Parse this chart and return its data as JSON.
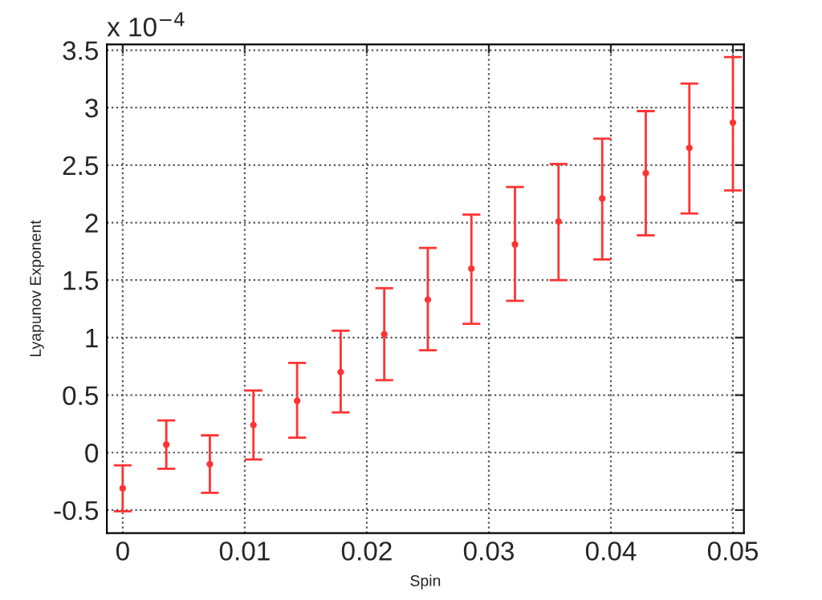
{
  "chart_data": {
    "type": "scatter",
    "xlabel": "Spin",
    "ylabel": "Lyapunov Exponent",
    "annotations": [
      "x 10$^{−4}$"
    ],
    "x": [
      0,
      0.00357,
      0.00714,
      0.01071,
      0.01429,
      0.01786,
      0.02143,
      0.025,
      0.02857,
      0.03214,
      0.03571,
      0.03929,
      0.04286,
      0.04643,
      0.05
    ],
    "series": [
      {
        "color": "#ff3333",
        "values": [
          -0.31,
          0.07,
          -0.1,
          0.24,
          0.45,
          0.7,
          1.03,
          1.33,
          1.6,
          1.81,
          2.01,
          2.21,
          2.43,
          2.65,
          2.87
        ],
        "errors": [
          [
            -0.51,
            -0.11
          ],
          [
            -0.14,
            0.28
          ],
          [
            -0.35,
            0.15
          ],
          [
            -0.06,
            0.54
          ],
          [
            0.13,
            0.78
          ],
          [
            0.35,
            1.06
          ],
          [
            0.63,
            1.43
          ],
          [
            0.89,
            1.78
          ],
          [
            1.12,
            2.07
          ],
          [
            1.32,
            2.31
          ],
          [
            1.5,
            2.51
          ],
          [
            1.68,
            2.73
          ],
          [
            1.89,
            2.97
          ],
          [
            2.08,
            3.21
          ],
          [
            2.28,
            3.44
          ]
        ]
      }
    ],
    "xlim": [
      -0.0013,
      0.0509
    ],
    "ylim": [
      -0.7,
      3.55
    ],
    "xticks": [
      {
        "value": 0,
        "label": "0"
      },
      0.01,
      0.02,
      0.03,
      0.04,
      0.05
    ],
    "yticks": [
      {
        "value": -0.5,
        "label": "-0.5"
      },
      {
        "value": 0,
        "label": "0"
      },
      0.5,
      {
        "value": 1,
        "label": "1"
      },
      1.5,
      {
        "value": 2,
        "label": "2"
      },
      2.5,
      {
        "value": 3,
        "label": "3"
      },
      3.5
    ],
    "grid": true,
    "marker": "circle",
    "legend": false
  }
}
